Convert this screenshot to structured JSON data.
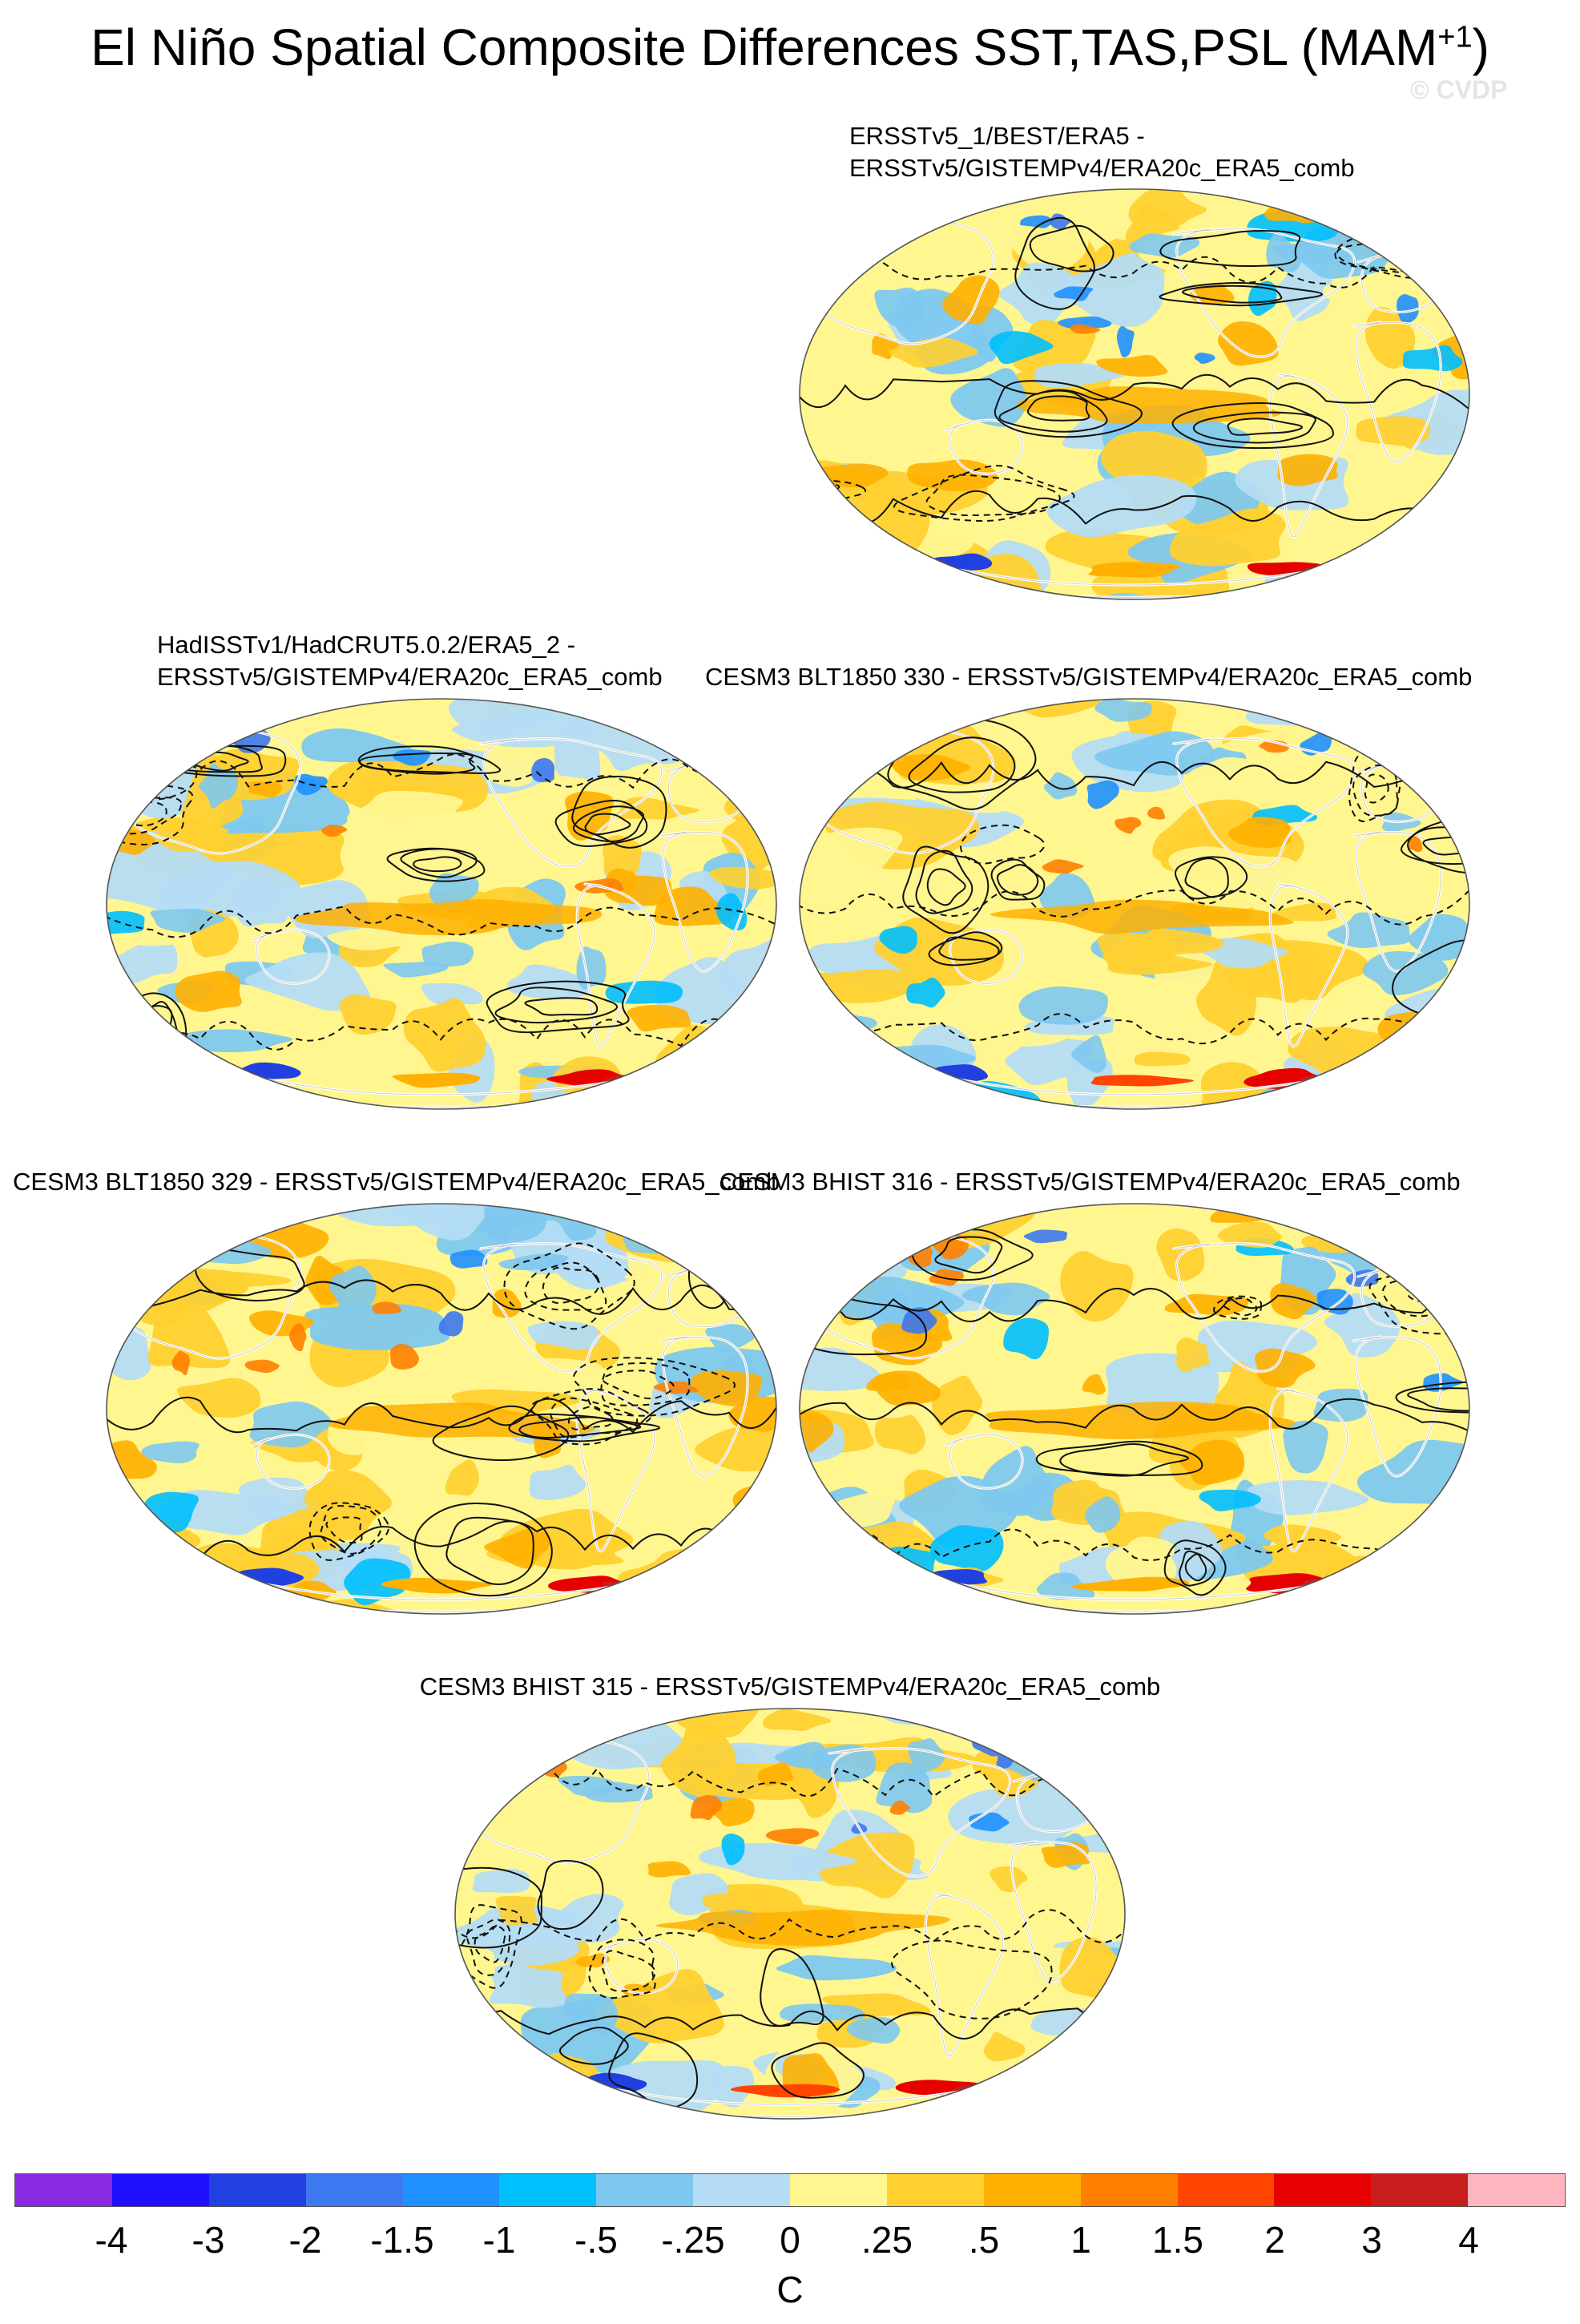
{
  "title": {
    "main": "El Niño Spatial Composite Differences SST,TAS,PSL (MAM",
    "superscript": "+1",
    "close": ")"
  },
  "watermark": "© CVDP",
  "panels": [
    {
      "id": "p1",
      "title_line1": "ERSSTv5_1/BEST/ERA5 -",
      "title_line2": "ERSSTv5/GISTEMPv4/ERA20c_ERA5_comb",
      "seed": 11,
      "polar": [
        0.25,
        0.05,
        0.2,
        0.2,
        0.25,
        0.05
      ]
    },
    {
      "id": "p2",
      "title_line1": "HadISSTv1/HadCRUT5.0.2/ERA5_2 -",
      "title_line2": "ERSSTv5/GISTEMPv4/ERA20c_ERA5_comb",
      "seed": 23,
      "polar": [
        0.2,
        0.05,
        0.15,
        0.15,
        0.3,
        0.05
      ]
    },
    {
      "id": "p3",
      "title_line1": "CESM3 BLT1850 330 - ERSSTv5/GISTEMPv4/ERA20c_ERA5_comb",
      "seed": 37,
      "polar": [
        0.35,
        0.1,
        0.25,
        0.35,
        0.45,
        0.05
      ]
    },
    {
      "id": "p4",
      "title_line1": "CESM3 BLT1850 329 - ERSSTv5/GISTEMPv4/ERA20c_ERA5_comb",
      "seed": 41,
      "polar": [
        0.3,
        0.05,
        0.15,
        0.2,
        0.5,
        0.05
      ]
    },
    {
      "id": "p5",
      "title_line1": "CESM3 BHIST 316 - ERSSTv5/GISTEMPv4/ERA20c_ERA5_comb",
      "seed": 53,
      "polar": [
        0.3,
        0.05,
        0.25,
        0.25,
        0.5,
        0.05
      ]
    },
    {
      "id": "p6",
      "title_line1": "CESM3 BHIST 315 - ERSSTv5/GISTEMPv4/ERA20c_ERA5_comb",
      "seed": 67,
      "polar": [
        0.3,
        0.05,
        0.25,
        0.3,
        0.5,
        0.05
      ]
    }
  ],
  "colorbar": {
    "colors": [
      "#8a2be2",
      "#1e10ff",
      "#2040e0",
      "#3c78f0",
      "#1e90ff",
      "#00bfff",
      "#7ec8ef",
      "#b4dcf4",
      "#fff68f",
      "#ffd030",
      "#ffb000",
      "#ff8000",
      "#ff4500",
      "#e60000",
      "#c81e1e",
      "#ffb6c1"
    ],
    "labels": [
      "-4",
      "-3",
      "-2",
      "-1.5",
      "-1",
      "-.5",
      "-.25",
      "0",
      ".25",
      ".5",
      "1",
      "1.5",
      "2",
      "3",
      "4"
    ],
    "units": "C"
  }
}
